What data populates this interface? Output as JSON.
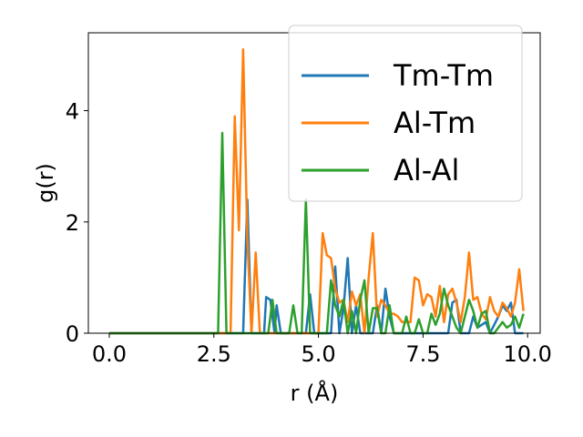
{
  "chart_data": {
    "type": "line",
    "title": "",
    "xlabel": "r (Å)",
    "ylabel": "g(r)",
    "xlim": [
      -0.5,
      10.3
    ],
    "ylim": [
      0,
      5.4
    ],
    "xticks": [
      0.0,
      2.5,
      5.0,
      7.5,
      10.0
    ],
    "xtick_labels": [
      "0.0",
      "2.5",
      "5.0",
      "7.5",
      "10.0"
    ],
    "yticks": [
      0,
      2,
      4
    ],
    "ytick_labels": [
      "0",
      "2",
      "4"
    ],
    "grid": false,
    "legend_position": "top-right",
    "series": [
      {
        "name": "Tm-Tm",
        "color": "#1f77b4",
        "points": [
          [
            0.0,
            0
          ],
          [
            3.2,
            0
          ],
          [
            3.3,
            2.4
          ],
          [
            3.4,
            0
          ],
          [
            3.7,
            0
          ],
          [
            3.75,
            0.65
          ],
          [
            3.85,
            0.6
          ],
          [
            3.95,
            0
          ],
          [
            4.0,
            0.5
          ],
          [
            4.1,
            0
          ],
          [
            4.7,
            0
          ],
          [
            4.8,
            0.7
          ],
          [
            4.9,
            0
          ],
          [
            5.3,
            0
          ],
          [
            5.4,
            1.2
          ],
          [
            5.5,
            0
          ],
          [
            5.6,
            0.45
          ],
          [
            5.7,
            1.35
          ],
          [
            5.8,
            0
          ],
          [
            5.9,
            0.5
          ],
          [
            6.0,
            0
          ],
          [
            6.3,
            0
          ],
          [
            6.4,
            0.5
          ],
          [
            6.5,
            0
          ],
          [
            6.6,
            0.8
          ],
          [
            6.7,
            0.3
          ],
          [
            6.8,
            0
          ],
          [
            8.1,
            0
          ],
          [
            8.2,
            0.55
          ],
          [
            8.3,
            0.6
          ],
          [
            8.4,
            0
          ],
          [
            8.6,
            0
          ],
          [
            8.7,
            0.3
          ],
          [
            8.8,
            0.1
          ],
          [
            9.0,
            0.2
          ],
          [
            9.1,
            0
          ],
          [
            9.3,
            0.3
          ],
          [
            9.4,
            0.5
          ],
          [
            9.5,
            0.4
          ],
          [
            9.6,
            0.55
          ],
          [
            9.7,
            0
          ],
          [
            9.9,
            0
          ]
        ]
      },
      {
        "name": "Al-Tm",
        "color": "#ff7f0e",
        "points": [
          [
            0.0,
            0
          ],
          [
            2.9,
            0
          ],
          [
            3.0,
            3.9
          ],
          [
            3.1,
            1.85
          ],
          [
            3.2,
            5.1
          ],
          [
            3.3,
            1.7
          ],
          [
            3.4,
            0
          ],
          [
            3.5,
            1.45
          ],
          [
            3.6,
            0
          ],
          [
            5.0,
            0
          ],
          [
            5.1,
            1.8
          ],
          [
            5.2,
            1.4
          ],
          [
            5.3,
            1.35
          ],
          [
            5.4,
            0.8
          ],
          [
            5.5,
            0.55
          ],
          [
            5.6,
            0.6
          ],
          [
            5.7,
            0.2
          ],
          [
            5.8,
            0.75
          ],
          [
            5.9,
            0.5
          ],
          [
            6.0,
            0.7
          ],
          [
            6.1,
            0
          ],
          [
            6.2,
            1.0
          ],
          [
            6.3,
            1.8
          ],
          [
            6.4,
            0.3
          ],
          [
            6.5,
            0.6
          ],
          [
            6.6,
            0.5
          ],
          [
            6.7,
            0.35
          ],
          [
            6.8,
            0.35
          ],
          [
            6.9,
            0.3
          ],
          [
            7.0,
            0.2
          ],
          [
            7.2,
            0.2
          ],
          [
            7.3,
            1.0
          ],
          [
            7.4,
            0.95
          ],
          [
            7.5,
            0.5
          ],
          [
            7.6,
            0.7
          ],
          [
            7.7,
            0.65
          ],
          [
            7.8,
            0.3
          ],
          [
            7.9,
            0.85
          ],
          [
            8.0,
            0.2
          ],
          [
            8.1,
            0.7
          ],
          [
            8.2,
            0.8
          ],
          [
            8.3,
            0.55
          ],
          [
            8.4,
            0.2
          ],
          [
            8.5,
            0.65
          ],
          [
            8.6,
            1.45
          ],
          [
            8.7,
            0.6
          ],
          [
            8.8,
            0.65
          ],
          [
            8.9,
            0.35
          ],
          [
            9.0,
            0.25
          ],
          [
            9.1,
            0.65
          ],
          [
            9.2,
            0.4
          ],
          [
            9.3,
            0.3
          ],
          [
            9.4,
            0.55
          ],
          [
            9.5,
            0.45
          ],
          [
            9.6,
            0.3
          ],
          [
            9.7,
            0.55
          ],
          [
            9.8,
            1.15
          ],
          [
            9.9,
            0.4
          ]
        ]
      },
      {
        "name": "Al-Al",
        "color": "#2ca02c",
        "points": [
          [
            0.0,
            0
          ],
          [
            2.6,
            0
          ],
          [
            2.7,
            3.6
          ],
          [
            2.8,
            0
          ],
          [
            3.7,
            0
          ],
          [
            3.8,
            0
          ],
          [
            3.9,
            0.6
          ],
          [
            4.0,
            0
          ],
          [
            4.3,
            0
          ],
          [
            4.4,
            0.5
          ],
          [
            4.5,
            0
          ],
          [
            4.6,
            0
          ],
          [
            4.7,
            2.4
          ],
          [
            4.8,
            0
          ],
          [
            5.2,
            0
          ],
          [
            5.3,
            0.95
          ],
          [
            5.4,
            0.5
          ],
          [
            5.5,
            0.3
          ],
          [
            5.6,
            0.6
          ],
          [
            5.7,
            0
          ],
          [
            5.8,
            0.4
          ],
          [
            5.9,
            0
          ],
          [
            6.0,
            0.6
          ],
          [
            6.1,
            0.95
          ],
          [
            6.2,
            0
          ],
          [
            6.3,
            0.45
          ],
          [
            6.4,
            0.45
          ],
          [
            6.5,
            0
          ],
          [
            6.6,
            0
          ],
          [
            6.7,
            0.5
          ],
          [
            6.8,
            0
          ],
          [
            7.0,
            0
          ],
          [
            7.1,
            0.3
          ],
          [
            7.2,
            0
          ],
          [
            7.3,
            0
          ],
          [
            7.4,
            0.25
          ],
          [
            7.5,
            0
          ],
          [
            7.6,
            0
          ],
          [
            7.7,
            0.35
          ],
          [
            7.8,
            0.15
          ],
          [
            7.9,
            0.35
          ],
          [
            8.0,
            0.8
          ],
          [
            8.1,
            0.5
          ],
          [
            8.2,
            0.3
          ],
          [
            8.3,
            0.1
          ],
          [
            8.4,
            0
          ],
          [
            8.5,
            0.3
          ],
          [
            8.6,
            0.6
          ],
          [
            8.7,
            0.4
          ],
          [
            8.8,
            0.1
          ],
          [
            8.9,
            0.35
          ],
          [
            9.0,
            0.4
          ],
          [
            9.1,
            0
          ],
          [
            9.2,
            0
          ],
          [
            9.3,
            0.1
          ],
          [
            9.4,
            0.2
          ],
          [
            9.5,
            0.1
          ],
          [
            9.6,
            0.15
          ],
          [
            9.7,
            0.3
          ],
          [
            9.8,
            0.1
          ],
          [
            9.9,
            0.35
          ]
        ]
      }
    ]
  }
}
